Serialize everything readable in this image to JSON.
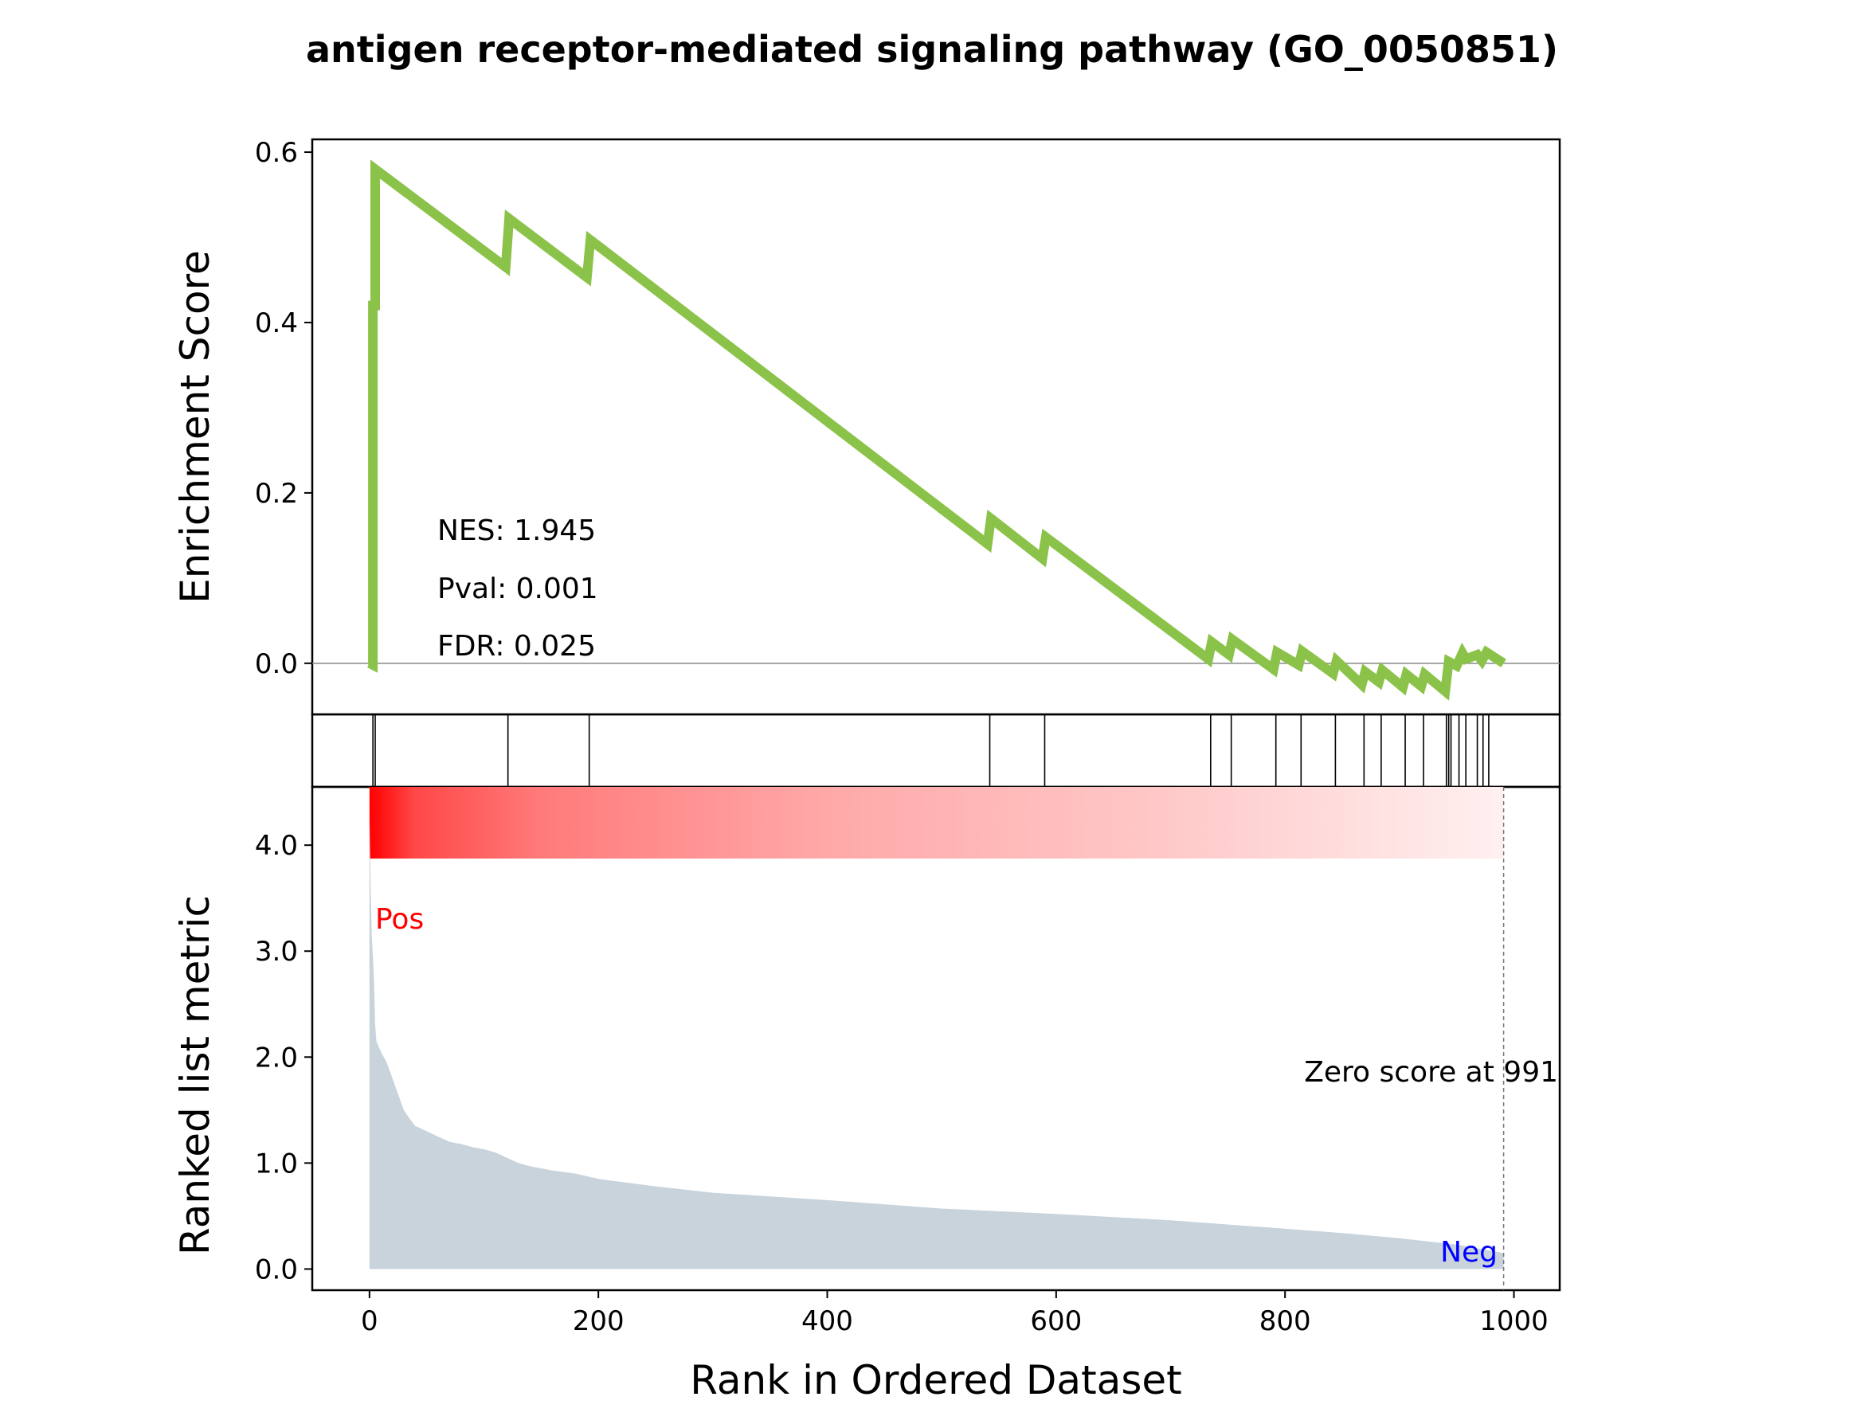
{
  "chart_data": {
    "type": "line",
    "title": "antigen receptor-mediated signaling pathway (GO_0050851)",
    "xlabel": "Rank in Ordered Dataset",
    "xlim": [
      -50,
      1040
    ],
    "x_ticks": [
      "0",
      "200",
      "400",
      "600",
      "800",
      "1000"
    ],
    "enrichment": {
      "ylabel": "Enrichment Score",
      "ylim": [
        -0.06,
        0.615
      ],
      "y_ticks": [
        "0.0",
        "0.2",
        "0.4",
        "0.6"
      ],
      "line_color": "#8bc34a",
      "x": [
        0,
        3,
        3,
        5,
        5,
        119,
        122,
        190,
        193,
        540,
        543,
        588,
        591,
        733,
        736,
        751,
        754,
        790,
        793,
        812,
        815,
        842,
        845,
        867,
        870,
        882,
        885,
        903,
        906,
        919,
        922,
        940,
        943,
        950,
        955,
        958,
        968,
        972,
        976,
        991
      ],
      "y": [
        0.0,
        -0.002,
        0.42,
        0.42,
        0.58,
        0.465,
        0.522,
        0.453,
        0.497,
        0.14,
        0.17,
        0.123,
        0.148,
        0.005,
        0.025,
        0.01,
        0.028,
        -0.007,
        0.013,
        -0.002,
        0.014,
        -0.012,
        0.003,
        -0.025,
        -0.01,
        -0.022,
        -0.008,
        -0.028,
        -0.013,
        -0.027,
        -0.013,
        -0.033,
        0.002,
        -0.003,
        0.012,
        0.005,
        0.01,
        0.003,
        0.013,
        0.0
      ],
      "nes_label": "NES: 1.945",
      "pval_label": "Pval: 0.001",
      "fdr_label": "FDR: 0.025"
    },
    "hits": [
      3,
      5,
      121,
      192,
      542,
      590,
      735,
      753,
      792,
      814,
      844,
      869,
      884,
      905,
      921,
      941,
      943,
      945,
      952,
      958,
      968,
      973,
      978
    ],
    "ranked_metric": {
      "ylabel": "Ranked list metric",
      "ylim": [
        -0.2,
        4.55
      ],
      "y_ticks": [
        "0.0",
        "1.0",
        "2.0",
        "3.0",
        "4.0"
      ],
      "fill_color": "#c8d3dc",
      "x": [
        0,
        1,
        2,
        3,
        4,
        5,
        6,
        8,
        10,
        15,
        20,
        25,
        30,
        35,
        40,
        50,
        60,
        70,
        80,
        90,
        100,
        110,
        120,
        130,
        140,
        150,
        160,
        180,
        200,
        250,
        300,
        400,
        500,
        600,
        700,
        800,
        850,
        900,
        950,
        991
      ],
      "y": [
        4.35,
        3.6,
        3.15,
        2.95,
        2.7,
        2.3,
        2.15,
        2.1,
        2.05,
        1.95,
        1.8,
        1.65,
        1.5,
        1.42,
        1.35,
        1.3,
        1.25,
        1.2,
        1.18,
        1.15,
        1.13,
        1.1,
        1.05,
        1.0,
        0.97,
        0.95,
        0.93,
        0.9,
        0.85,
        0.78,
        0.72,
        0.65,
        0.57,
        0.52,
        0.46,
        0.38,
        0.34,
        0.29,
        0.23,
        0.15
      ],
      "pos_label": "Pos",
      "neg_label": "Neg",
      "zero_label": "Zero score at 991",
      "zero_x": 991
    }
  }
}
